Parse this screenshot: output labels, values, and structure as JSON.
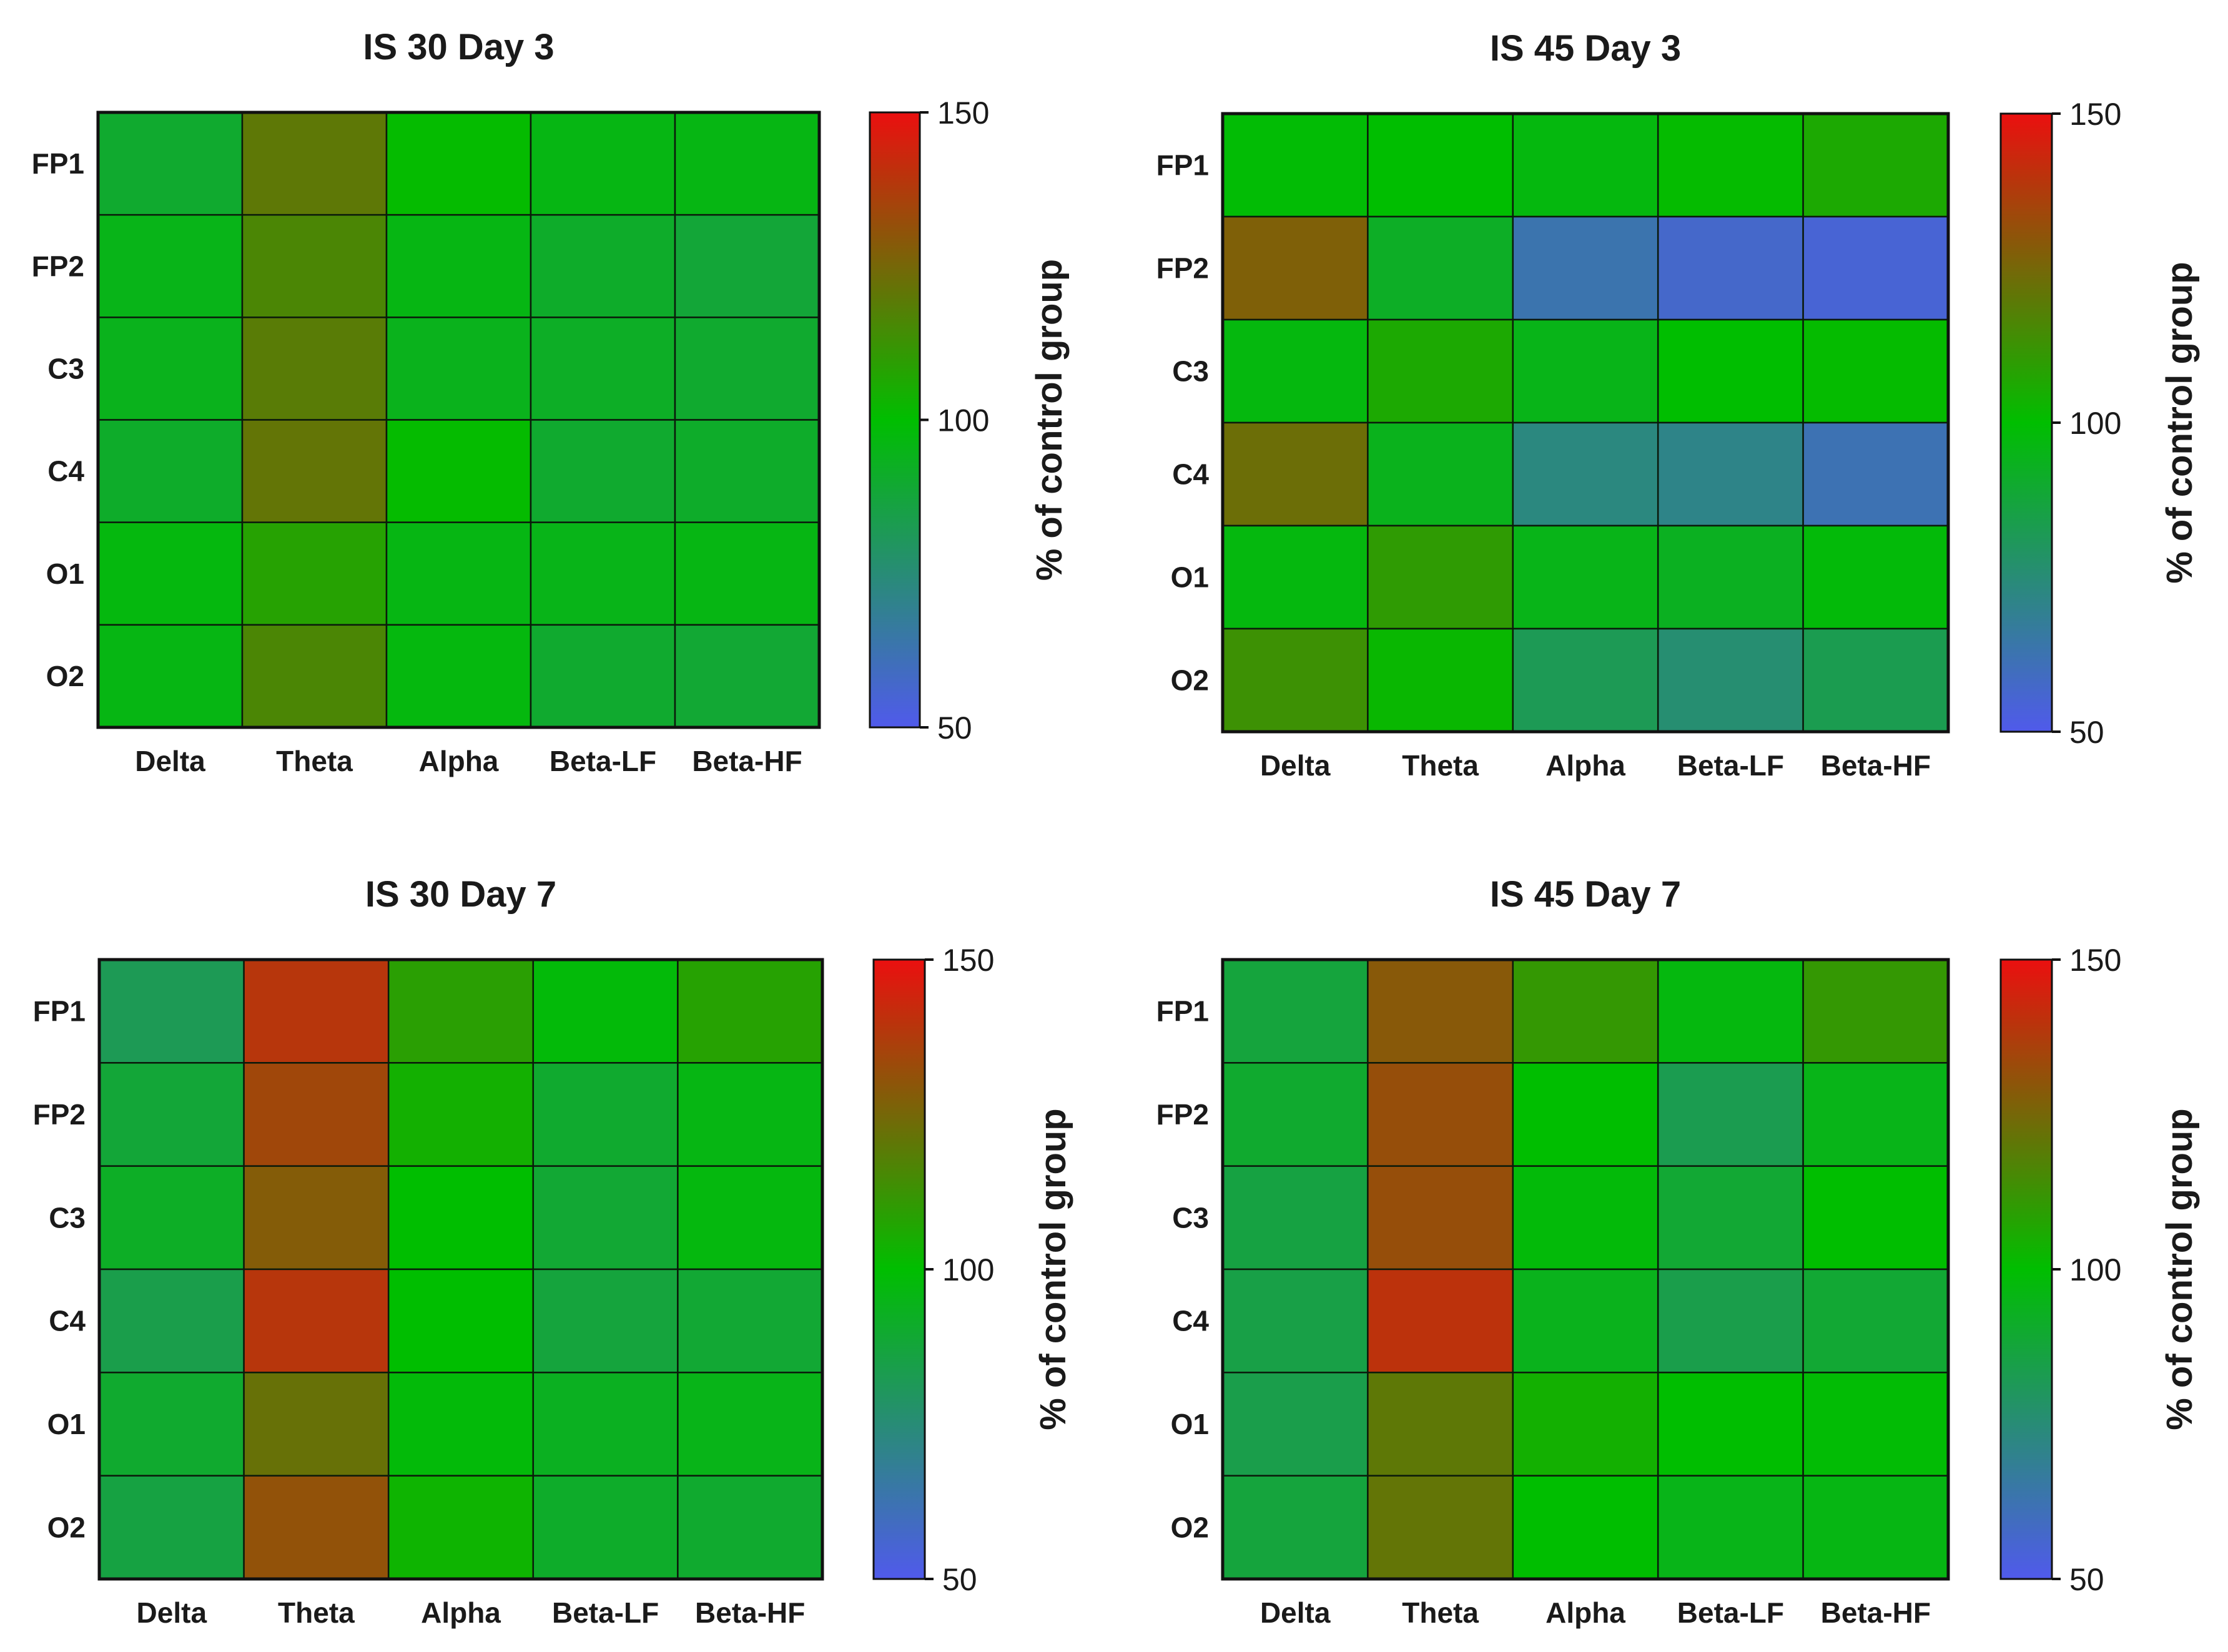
{
  "chart_data": [
    {
      "type": "heatmap",
      "title": "IS 30 Day 3",
      "xlabels": [
        "Delta",
        "Theta",
        "Alpha",
        "Beta-LF",
        "Beta-HF"
      ],
      "ylabels": [
        "FP1",
        "FP2",
        "C3",
        "C4",
        "O1",
        "O2"
      ],
      "values": [
        [
          90,
          120,
          101,
          96,
          96
        ],
        [
          95,
          116,
          96,
          91,
          88
        ],
        [
          94,
          119,
          94,
          92,
          90
        ],
        [
          91,
          121,
          101,
          90,
          91
        ],
        [
          97,
          108,
          96,
          95,
          96
        ],
        [
          96,
          116,
          97,
          90,
          89
        ]
      ],
      "colorbar": {
        "label": "% of control group",
        "min": 50,
        "max": 150,
        "ticks": [
          150,
          100,
          50
        ]
      }
    },
    {
      "type": "heatmap",
      "title": "IS 45 Day 3",
      "xlabels": [
        "Delta",
        "Theta",
        "Alpha",
        "Beta-LF",
        "Beta-HF"
      ],
      "ylabels": [
        "FP1",
        "FP2",
        "C3",
        "C4",
        "O1",
        "O2"
      ],
      "values": [
        [
          99,
          100,
          97,
          101,
          106
        ],
        [
          127,
          92,
          63,
          57,
          55
        ],
        [
          97,
          106,
          95,
          100,
          101
        ],
        [
          123,
          94,
          73,
          71,
          62
        ],
        [
          97,
          110,
          95,
          93,
          98
        ],
        [
          113,
          102,
          82,
          76,
          83
        ]
      ],
      "colorbar": {
        "label": "% of control group",
        "min": 50,
        "max": 150,
        "ticks": [
          150,
          100,
          50
        ]
      }
    },
    {
      "type": "heatmap",
      "title": "IS 30 Day 7",
      "xlabels": [
        "Delta",
        "Theta",
        "Alpha",
        "Beta-LF",
        "Beta-HF"
      ],
      "ylabels": [
        "FP1",
        "FP2",
        "C3",
        "C4",
        "O1",
        "O2"
      ],
      "values": [
        [
          82,
          139,
          109,
          98,
          108
        ],
        [
          88,
          134,
          104,
          90,
          96
        ],
        [
          92,
          128,
          100,
          89,
          97
        ],
        [
          84,
          139,
          100,
          87,
          89
        ],
        [
          90,
          122,
          98,
          93,
          95
        ],
        [
          86,
          131,
          103,
          91,
          90
        ]
      ],
      "colorbar": {
        "label": "% of control group",
        "min": 50,
        "max": 150,
        "ticks": [
          150,
          100,
          50
        ]
      }
    },
    {
      "type": "heatmap",
      "title": "IS 45 Day 7",
      "xlabels": [
        "Delta",
        "Theta",
        "Alpha",
        "Beta-LF",
        "Beta-HF"
      ],
      "ylabels": [
        "FP1",
        "FP2",
        "C3",
        "C4",
        "O1",
        "O2"
      ],
      "values": [
        [
          87,
          129,
          111,
          97,
          111
        ],
        [
          90,
          132,
          100,
          83,
          95
        ],
        [
          86,
          132,
          98,
          89,
          100
        ],
        [
          85,
          140,
          94,
          84,
          89
        ],
        [
          84,
          120,
          104,
          100,
          99
        ],
        [
          87,
          121,
          100,
          95,
          96
        ]
      ],
      "colorbar": {
        "label": "% of control group",
        "min": 50,
        "max": 150,
        "ticks": [
          150,
          100,
          50
        ]
      }
    }
  ]
}
